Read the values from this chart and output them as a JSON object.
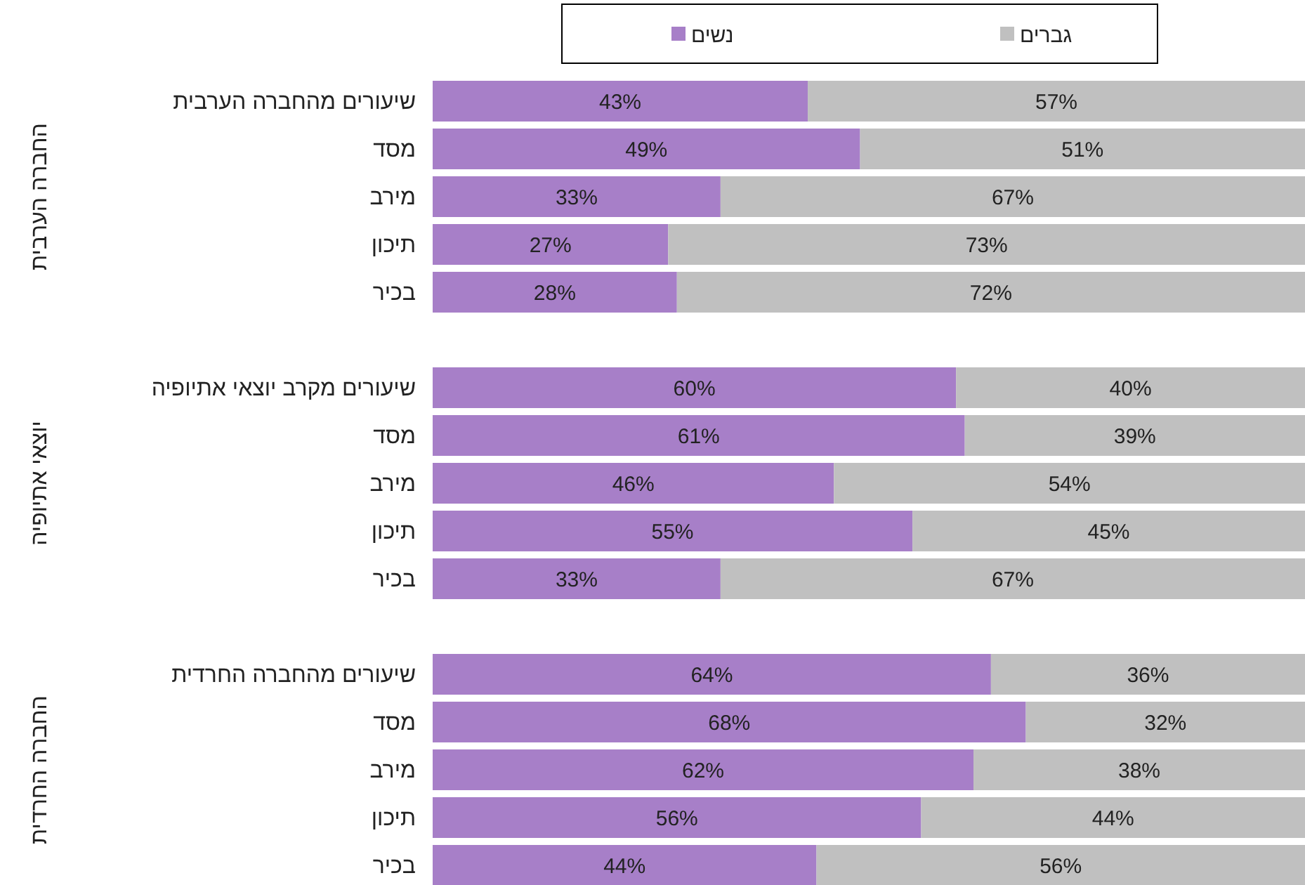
{
  "chart_data": [
    {
      "type": "bar",
      "orientation": "horizontal",
      "stacked": true,
      "legend": "top",
      "tick_labels": "y",
      "ylabel": "החברה הערבית",
      "xlim": [
        0,
        100
      ],
      "categories": [
        "שיעורים מהחברה הערבית",
        "מסד",
        "מירב",
        "תיכון",
        "בכיר"
      ],
      "series": [
        {
          "name": "נשים",
          "color": "#a77fc8",
          "values": [
            43,
            49,
            33,
            27,
            28
          ],
          "value_labels": [
            "43%",
            "49%",
            "33%",
            "27%",
            "28%"
          ]
        },
        {
          "name": "גברים",
          "color": "#c0c0c0",
          "values": [
            57,
            51,
            67,
            73,
            72
          ],
          "value_labels": [
            "57%",
            "51%",
            "67%",
            "73%",
            "72%"
          ]
        }
      ]
    },
    {
      "type": "bar",
      "orientation": "horizontal",
      "stacked": true,
      "tick_labels": "y",
      "ylabel": "יוצאי אתיופיה",
      "xlim": [
        0,
        100
      ],
      "categories": [
        "שיעורים מקרב יוצאי אתיופיה",
        "מסד",
        "מירב",
        "תיכון",
        "בכיר"
      ],
      "series": [
        {
          "color": "#a77fc8",
          "values": [
            60,
            61,
            46,
            55,
            33
          ],
          "value_labels": [
            "60%",
            "61%",
            "46%",
            "55%",
            "33%"
          ]
        },
        {
          "color": "#c0c0c0",
          "values": [
            40,
            39,
            54,
            45,
            67
          ],
          "value_labels": [
            "40%",
            "39%",
            "54%",
            "45%",
            "67%"
          ]
        }
      ]
    },
    {
      "type": "bar",
      "orientation": "horizontal",
      "stacked": true,
      "tick_labels": "y",
      "ylabel": "החברה החרדית",
      "xlim": [
        0,
        100
      ],
      "categories": [
        "שיעורים מהחברה החרדית",
        "מסד",
        "מירב",
        "תיכון",
        "בכיר"
      ],
      "series": [
        {
          "color": "#a77fc8",
          "values": [
            64,
            68,
            62,
            56,
            44
          ],
          "value_labels": [
            "64%",
            "68%",
            "62%",
            "56%",
            "44%"
          ]
        },
        {
          "color": "#c0c0c0",
          "values": [
            36,
            32,
            38,
            44,
            56
          ],
          "value_labels": [
            "36%",
            "32%",
            "38%",
            "44%",
            "56%"
          ]
        }
      ]
    }
  ]
}
